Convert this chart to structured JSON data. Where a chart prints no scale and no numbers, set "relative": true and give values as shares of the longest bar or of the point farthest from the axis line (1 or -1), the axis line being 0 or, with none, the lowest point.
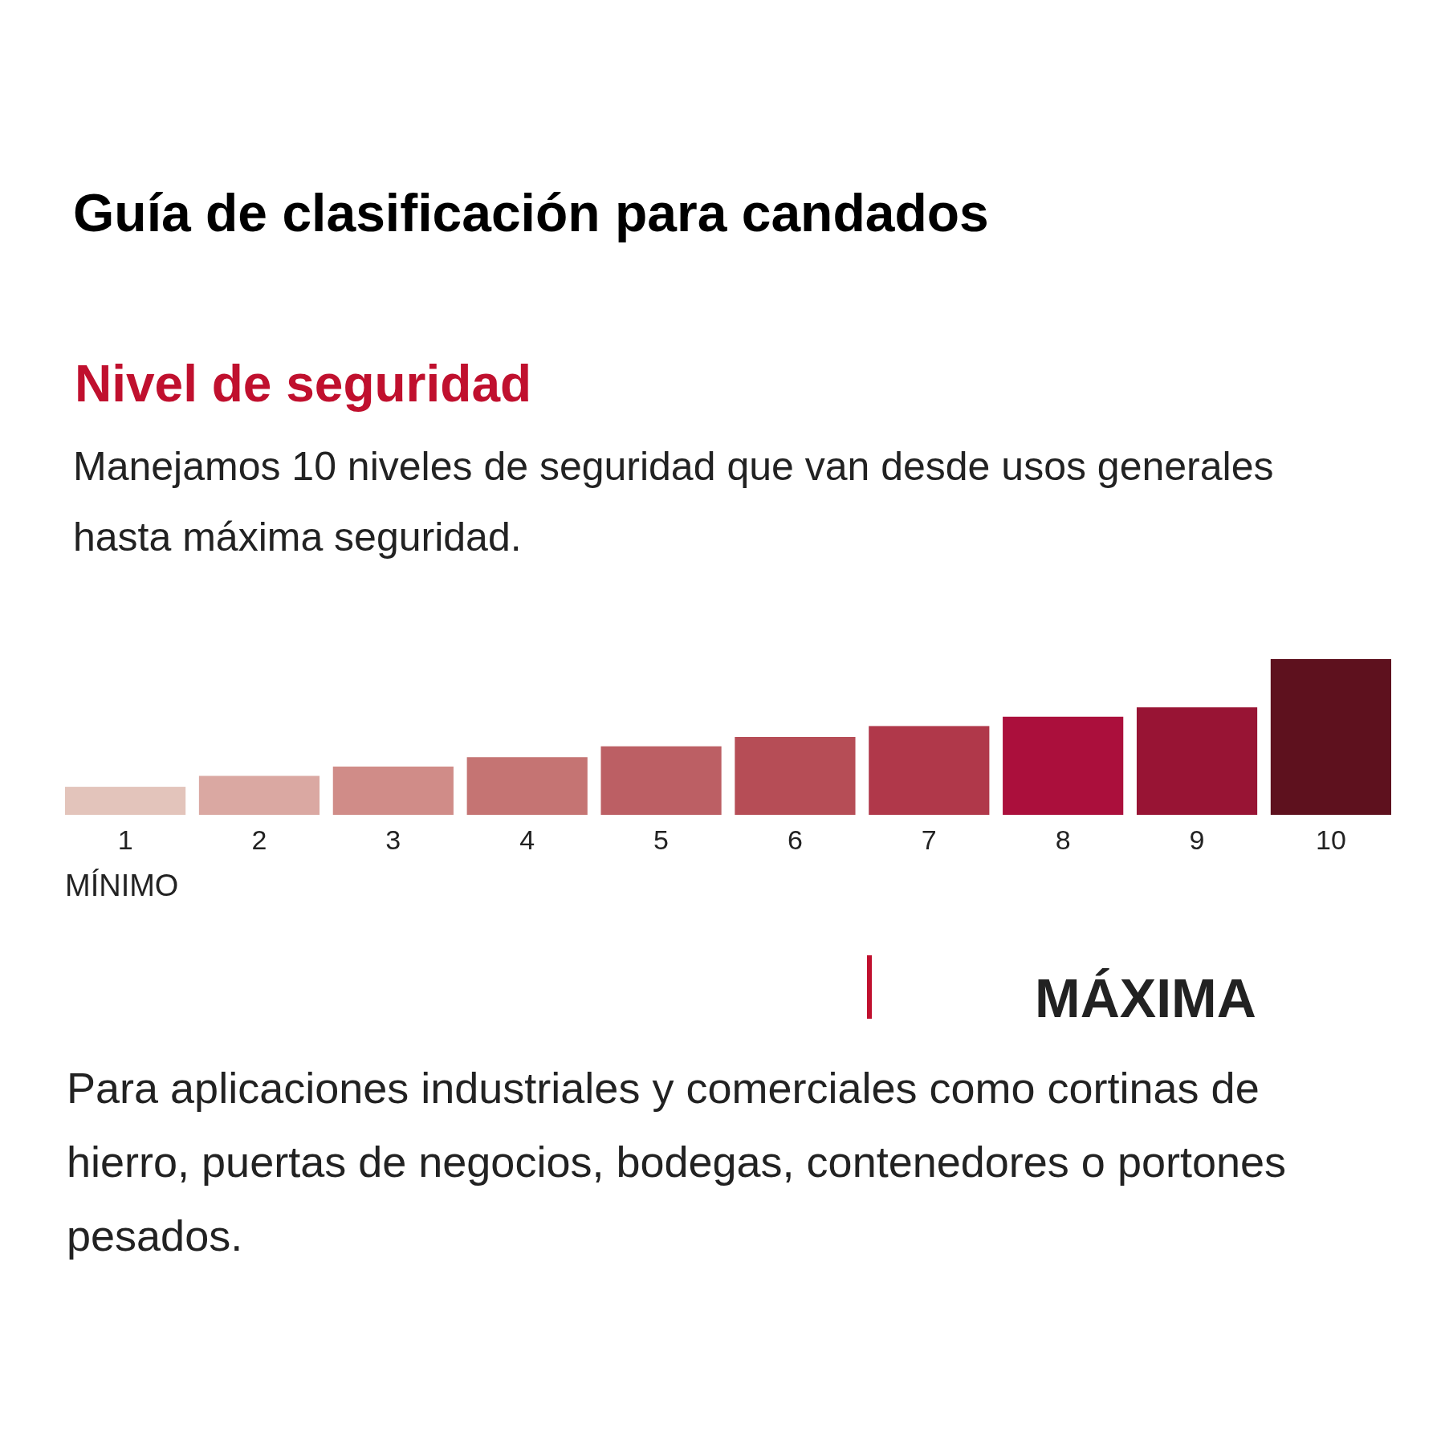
{
  "chart_data": {
    "type": "bar",
    "title": "Guía de clasificación para candados",
    "subtitle": "Nivel de seguridad",
    "relative": true,
    "categories": [
      "1",
      "2",
      "3",
      "4",
      "5",
      "6",
      "7",
      "8",
      "9",
      "10"
    ],
    "values": [
      0.18,
      0.25,
      0.31,
      0.37,
      0.44,
      0.5,
      0.57,
      0.63,
      0.69,
      1
    ],
    "colors": [
      "#e3c4bb",
      "#daa8a2",
      "#d08c88",
      "#c57473",
      "#bc5f64",
      "#b64d56",
      "#b0384a",
      "#ab0f3c",
      "#981434",
      "#5e111e"
    ],
    "annotations": [
      "Manejamos 10 niveles de seguridad que van desde usos generales hasta máxima seguridad.",
      "MÍNIMO",
      "MÁXIMA",
      "Para aplicaciones industriales y comerciales como cortinas de hierro, puertas de negocios, bodegas, contenedores o portones pesados."
    ]
  }
}
